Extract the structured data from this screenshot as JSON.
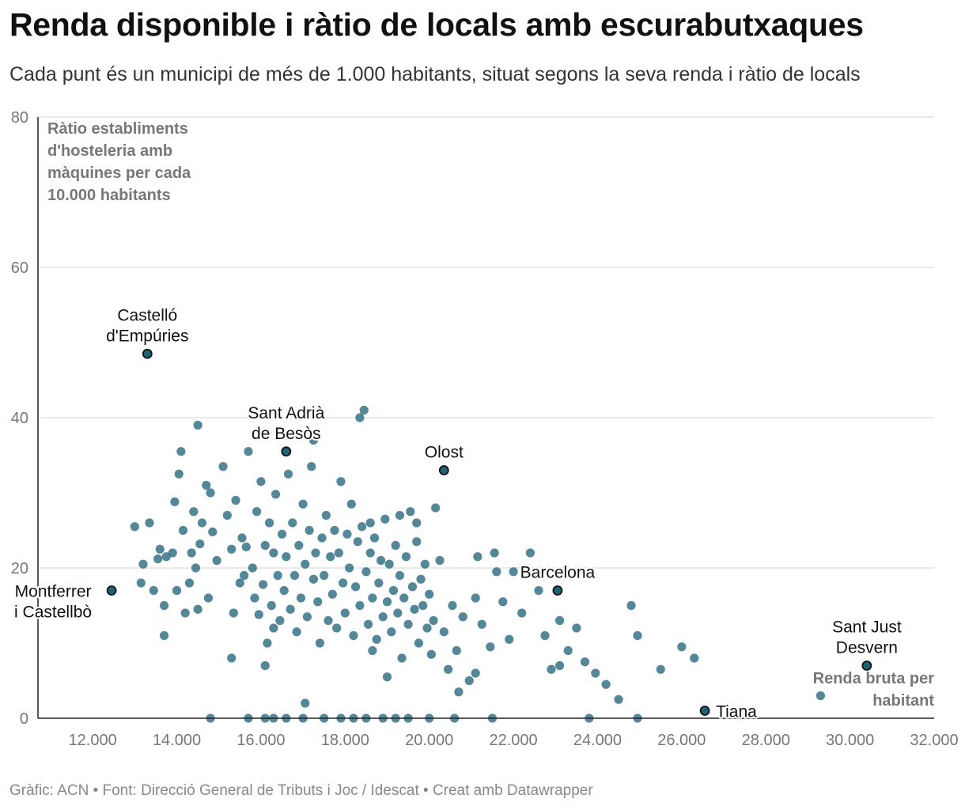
{
  "title": "Renda disponible i ràtio de locals amb escurabutxaques",
  "subtitle": "Cada punt és un municipi de més de 1.000 habitants, situat segons la seva renda i ràtio de locals",
  "footer": "Gràfic: ACN • Font: Direcció General de Tributs i Joc / Idescat  • Creat amb Datawrapper",
  "colors": {
    "dot": "#2e6e82",
    "highlight": "#1f6276",
    "grid": "#e3e3e3",
    "axis": "#222222"
  },
  "chart_data": {
    "type": "scatter",
    "title": "Renda disponible i ràtio de locals amb escurabutxaques",
    "ylabel_lines": [
      "Ràtio establiments",
      "d'hosteleria amb",
      "màquines per cada",
      "10.000 habitants"
    ],
    "xlabel_lines": [
      "Renda bruta per",
      "habitant"
    ],
    "xlim": [
      10700,
      32000
    ],
    "ylim": [
      0,
      80
    ],
    "x_ticks": [
      12000,
      14000,
      16000,
      18000,
      20000,
      22000,
      24000,
      26000,
      28000,
      30000,
      32000
    ],
    "x_tick_labels": [
      "12.000",
      "14.000",
      "16.000",
      "18.000",
      "20.000",
      "22.000",
      "24.000",
      "26.000",
      "28.000",
      "30.000",
      "32.000"
    ],
    "y_ticks": [
      0,
      20,
      40,
      60,
      80
    ],
    "y_tick_labels": [
      "0",
      "20",
      "40",
      "60",
      "80"
    ],
    "highlighted": [
      {
        "name_lines": [
          "Castelló",
          "d'Empúries"
        ],
        "x": 13300,
        "y": 48.5,
        "label_pos": "above"
      },
      {
        "name_lines": [
          "Sant Adrià",
          "de Besòs"
        ],
        "x": 16600,
        "y": 35.5,
        "label_pos": "above"
      },
      {
        "name_lines": [
          "Olost"
        ],
        "x": 20350,
        "y": 33,
        "label_pos": "above"
      },
      {
        "name_lines": [
          "Barcelona"
        ],
        "x": 23050,
        "y": 17,
        "label_pos": "above"
      },
      {
        "name_lines": [
          "Montferrer",
          "i Castellbò"
        ],
        "x": 12450,
        "y": 17,
        "label_pos": "left"
      },
      {
        "name_lines": [
          "Sant Just",
          "Desvern"
        ],
        "x": 30400,
        "y": 7,
        "label_pos": "above"
      },
      {
        "name_lines": [
          "Tiana"
        ],
        "x": 26550,
        "y": 1,
        "label_pos": "right"
      }
    ],
    "points": [
      [
        13000,
        25.5
      ],
      [
        13150,
        18
      ],
      [
        13200,
        20.5
      ],
      [
        13350,
        26
      ],
      [
        13450,
        17
      ],
      [
        13550,
        21.2
      ],
      [
        13600,
        22.5
      ],
      [
        13700,
        15
      ],
      [
        13750,
        21.5
      ],
      [
        13900,
        22
      ],
      [
        13950,
        28.8
      ],
      [
        14000,
        17
      ],
      [
        14050,
        32.5
      ],
      [
        14100,
        35.5
      ],
      [
        14150,
        25
      ],
      [
        14200,
        14
      ],
      [
        14300,
        18
      ],
      [
        14350,
        22
      ],
      [
        14400,
        27.5
      ],
      [
        14450,
        20
      ],
      [
        14500,
        39
      ],
      [
        14550,
        23.2
      ],
      [
        14600,
        26
      ],
      [
        14700,
        31
      ],
      [
        14750,
        16
      ],
      [
        14800,
        30
      ],
      [
        14850,
        24.8
      ],
      [
        14950,
        21
      ],
      [
        15100,
        33.5
      ],
      [
        15200,
        27
      ],
      [
        15300,
        22.5
      ],
      [
        15350,
        14
      ],
      [
        15400,
        29
      ],
      [
        15500,
        18
      ],
      [
        15550,
        24
      ],
      [
        15650,
        22.8
      ],
      [
        15700,
        35.5
      ],
      [
        15800,
        20
      ],
      [
        15850,
        16
      ],
      [
        15900,
        27.5
      ],
      [
        15950,
        13.8
      ],
      [
        16000,
        31.5
      ],
      [
        16050,
        17.8
      ],
      [
        16100,
        23
      ],
      [
        16150,
        10
      ],
      [
        16200,
        26
      ],
      [
        16250,
        15
      ],
      [
        16300,
        22
      ],
      [
        16350,
        29.8
      ],
      [
        16400,
        19
      ],
      [
        16450,
        13
      ],
      [
        16500,
        24.5
      ],
      [
        16550,
        17
      ],
      [
        16600,
        21.5
      ],
      [
        16650,
        32.5
      ],
      [
        16700,
        14.5
      ],
      [
        16750,
        26
      ],
      [
        16800,
        19
      ],
      [
        16850,
        11.5
      ],
      [
        16900,
        23
      ],
      [
        16950,
        16
      ],
      [
        17000,
        28.5
      ],
      [
        17050,
        20.5
      ],
      [
        17100,
        13.5
      ],
      [
        17150,
        25
      ],
      [
        17200,
        33.5
      ],
      [
        17250,
        18.5
      ],
      [
        17300,
        22
      ],
      [
        17350,
        15.5
      ],
      [
        17400,
        10
      ],
      [
        17450,
        24
      ],
      [
        17500,
        19
      ],
      [
        17550,
        27
      ],
      [
        17600,
        13
      ],
      [
        17650,
        21.5
      ],
      [
        17700,
        16.5
      ],
      [
        17750,
        25
      ],
      [
        17800,
        12
      ],
      [
        17850,
        22
      ],
      [
        17900,
        31.5
      ],
      [
        17950,
        18
      ],
      [
        18000,
        14
      ],
      [
        18050,
        24.5
      ],
      [
        18100,
        20
      ],
      [
        18150,
        28.5
      ],
      [
        18200,
        11
      ],
      [
        18250,
        17.5
      ],
      [
        18300,
        23.5
      ],
      [
        18350,
        15
      ],
      [
        18400,
        25.5
      ],
      [
        18450,
        41
      ],
      [
        18500,
        19.5
      ],
      [
        18550,
        12.5
      ],
      [
        18600,
        22
      ],
      [
        18650,
        16
      ],
      [
        18700,
        24
      ],
      [
        18750,
        10.5
      ],
      [
        18800,
        18
      ],
      [
        18850,
        21
      ],
      [
        18900,
        13.5
      ],
      [
        18950,
        26.5
      ],
      [
        19000,
        15.5
      ],
      [
        19050,
        20.5
      ],
      [
        19100,
        11.5
      ],
      [
        19150,
        17
      ],
      [
        19200,
        23
      ],
      [
        19250,
        14
      ],
      [
        19300,
        19
      ],
      [
        19350,
        8
      ],
      [
        19400,
        16
      ],
      [
        19450,
        21.5
      ],
      [
        19500,
        12.5
      ],
      [
        19550,
        27.5
      ],
      [
        19600,
        17.5
      ],
      [
        19650,
        14.5
      ],
      [
        19700,
        23.5
      ],
      [
        19750,
        10
      ],
      [
        19800,
        18.5
      ],
      [
        19850,
        15
      ],
      [
        19900,
        20.5
      ],
      [
        19950,
        12
      ],
      [
        20000,
        16.5
      ],
      [
        20050,
        8.5
      ],
      [
        20100,
        13
      ],
      [
        20150,
        28
      ],
      [
        20250,
        21
      ],
      [
        20350,
        11.5
      ],
      [
        20450,
        6.5
      ],
      [
        20550,
        15
      ],
      [
        20650,
        9
      ],
      [
        20800,
        13.5
      ],
      [
        20950,
        5
      ],
      [
        21100,
        16
      ],
      [
        21150,
        21.5
      ],
      [
        21250,
        12.5
      ],
      [
        21450,
        9.5
      ],
      [
        21550,
        22
      ],
      [
        21750,
        15.5
      ],
      [
        21900,
        10.5
      ],
      [
        22000,
        19.5
      ],
      [
        22200,
        14
      ],
      [
        22400,
        22
      ],
      [
        22600,
        17
      ],
      [
        22750,
        11
      ],
      [
        22900,
        6.5
      ],
      [
        23100,
        13
      ],
      [
        23300,
        9
      ],
      [
        23500,
        12
      ],
      [
        23700,
        7.5
      ],
      [
        23950,
        6
      ],
      [
        24200,
        4.5
      ],
      [
        24500,
        2.5
      ],
      [
        24800,
        15
      ],
      [
        24950,
        11
      ],
      [
        25500,
        6.5
      ],
      [
        26000,
        9.5
      ],
      [
        26300,
        8
      ],
      [
        14800,
        0
      ],
      [
        15700,
        0
      ],
      [
        16100,
        0
      ],
      [
        16300,
        0
      ],
      [
        16600,
        0
      ],
      [
        17000,
        0
      ],
      [
        17500,
        0
      ],
      [
        17900,
        0
      ],
      [
        18200,
        0
      ],
      [
        18500,
        0
      ],
      [
        18900,
        0
      ],
      [
        19200,
        0
      ],
      [
        19500,
        0
      ],
      [
        20000,
        0
      ],
      [
        20600,
        0
      ],
      [
        21500,
        0
      ],
      [
        23800,
        0
      ],
      [
        24950,
        0
      ],
      [
        29300,
        3
      ],
      [
        18350,
        40
      ],
      [
        17250,
        37
      ],
      [
        18600,
        26
      ],
      [
        19300,
        27
      ],
      [
        18650,
        9
      ],
      [
        16300,
        12
      ],
      [
        15600,
        19
      ],
      [
        14500,
        14.5
      ],
      [
        13700,
        11
      ],
      [
        15300,
        8
      ],
      [
        16100,
        7
      ],
      [
        17050,
        2
      ],
      [
        19000,
        5.5
      ],
      [
        20700,
        3.5
      ],
      [
        21100,
        6
      ],
      [
        23100,
        7
      ],
      [
        21600,
        19.5
      ],
      [
        19700,
        26
      ]
    ]
  }
}
